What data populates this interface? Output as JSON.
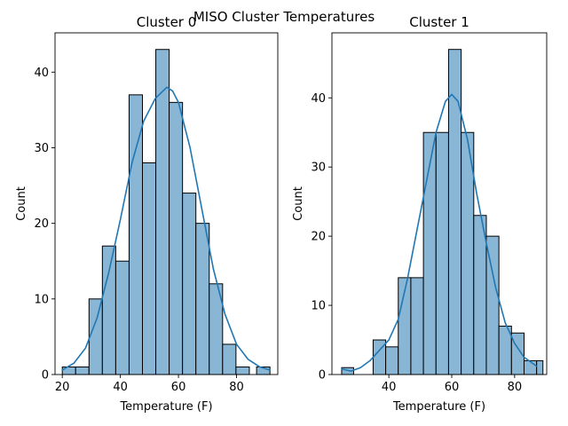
{
  "figure_title": "MISO Cluster Temperatures",
  "colors": {
    "bar_fill": "#8ab6d6",
    "bar_edge": "#000000",
    "kde_line": "#1f77b4",
    "axis": "#000000"
  },
  "chart_data": [
    {
      "type": "bar",
      "title": "Cluster 0",
      "xlabel": "Temperature (F)",
      "ylabel": "Count",
      "xlim": [
        17.5,
        94.2
      ],
      "ylim": [
        0,
        45.2
      ],
      "xticks": [
        20,
        40,
        60,
        80
      ],
      "yticks": [
        0,
        10,
        20,
        30,
        40
      ],
      "grid": false,
      "bins": [
        {
          "x0": 20.0,
          "x1": 24.6,
          "count": 1
        },
        {
          "x0": 24.6,
          "x1": 29.2,
          "count": 1
        },
        {
          "x0": 29.2,
          "x1": 33.8,
          "count": 10
        },
        {
          "x0": 33.8,
          "x1": 38.4,
          "count": 17
        },
        {
          "x0": 38.4,
          "x1": 43.0,
          "count": 15
        },
        {
          "x0": 43.0,
          "x1": 47.6,
          "count": 37
        },
        {
          "x0": 47.6,
          "x1": 52.2,
          "count": 28
        },
        {
          "x0": 52.2,
          "x1": 56.8,
          "count": 43
        },
        {
          "x0": 56.8,
          "x1": 61.4,
          "count": 36
        },
        {
          "x0": 61.4,
          "x1": 66.0,
          "count": 24
        },
        {
          "x0": 66.0,
          "x1": 70.6,
          "count": 20
        },
        {
          "x0": 70.6,
          "x1": 75.2,
          "count": 12
        },
        {
          "x0": 75.2,
          "x1": 79.8,
          "count": 4
        },
        {
          "x0": 79.8,
          "x1": 84.4,
          "count": 1
        },
        {
          "x0": 86.9,
          "x1": 91.5,
          "count": 1
        }
      ],
      "kde": {
        "x": [
          20,
          24,
          28,
          32,
          36,
          40,
          44,
          48,
          52,
          56,
          58,
          60,
          64,
          68,
          72,
          76,
          80,
          84,
          88,
          91.5
        ],
        "y": [
          0.6,
          1.5,
          3.5,
          7.5,
          13.5,
          20.5,
          28,
          33.5,
          36.5,
          38,
          37.5,
          36,
          30,
          22,
          14,
          8,
          4,
          2,
          1,
          0.6
        ]
      }
    },
    {
      "type": "bar",
      "title": "Cluster 1",
      "xlabel": "Temperature (F)",
      "ylabel": "Count",
      "xlim": [
        21.9,
        90.2
      ],
      "ylim": [
        0,
        49.4
      ],
      "xticks": [
        40,
        60,
        80
      ],
      "yticks": [
        0,
        10,
        20,
        30,
        40
      ],
      "grid": false,
      "bins": [
        {
          "x0": 25.0,
          "x1": 28.8,
          "count": 1
        },
        {
          "x0": 35.0,
          "x1": 39.0,
          "count": 5
        },
        {
          "x0": 39.0,
          "x1": 43.0,
          "count": 4
        },
        {
          "x0": 43.0,
          "x1": 47.0,
          "count": 14
        },
        {
          "x0": 47.0,
          "x1": 51.0,
          "count": 14
        },
        {
          "x0": 51.0,
          "x1": 55.0,
          "count": 35
        },
        {
          "x0": 55.0,
          "x1": 59.0,
          "count": 35
        },
        {
          "x0": 59.0,
          "x1": 63.0,
          "count": 47
        },
        {
          "x0": 63.0,
          "x1": 67.0,
          "count": 35
        },
        {
          "x0": 67.0,
          "x1": 71.0,
          "count": 23
        },
        {
          "x0": 71.0,
          "x1": 75.0,
          "count": 20
        },
        {
          "x0": 75.0,
          "x1": 79.0,
          "count": 7
        },
        {
          "x0": 79.0,
          "x1": 83.0,
          "count": 6
        },
        {
          "x0": 83.0,
          "x1": 87.0,
          "count": 2
        },
        {
          "x0": 87.0,
          "x1": 89.0,
          "count": 2
        }
      ],
      "kde": {
        "x": [
          25,
          28,
          31,
          34,
          37,
          40,
          43,
          46,
          49,
          52,
          55,
          58,
          60,
          62,
          65,
          68,
          71,
          74,
          77,
          80,
          83,
          87
        ],
        "y": [
          0.8,
          0.5,
          1,
          2,
          3.5,
          5,
          8,
          14,
          21,
          28,
          35,
          39.5,
          40.5,
          39.5,
          34,
          26,
          19,
          12.5,
          7.5,
          4.5,
          2.5,
          1.2
        ]
      }
    }
  ]
}
